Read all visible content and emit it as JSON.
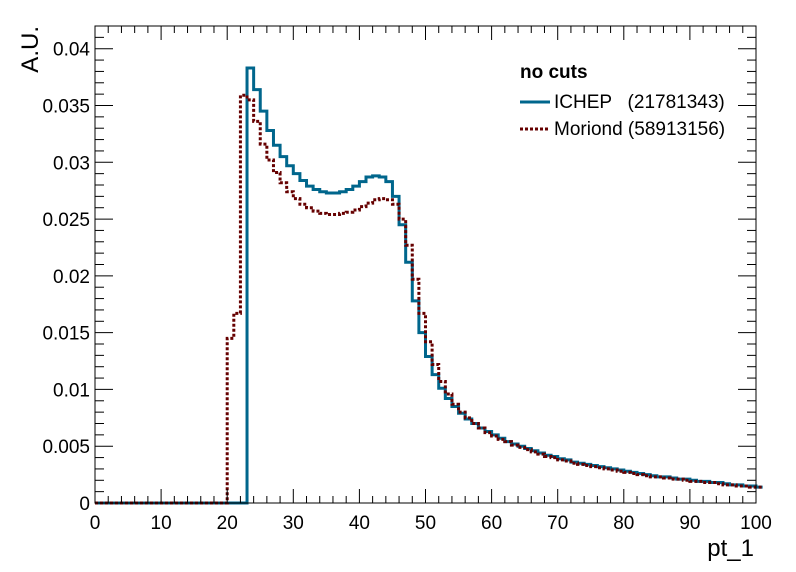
{
  "chart_data": {
    "type": "line",
    "step": true,
    "xlabel": "pt_1",
    "ylabel": "A.U.",
    "xlim": [
      0,
      100
    ],
    "ylim": [
      0,
      0.042
    ],
    "x_ticks": [
      "0",
      "10",
      "20",
      "30",
      "40",
      "50",
      "60",
      "70",
      "80",
      "90",
      "100"
    ],
    "y_ticks": [
      "0",
      "0.005",
      "0.01",
      "0.015",
      "0.02",
      "0.025",
      "0.03",
      "0.035",
      "0.04"
    ],
    "grid": false,
    "legend": {
      "placement": "top-right",
      "title": "no cuts"
    },
    "bin_width": 1,
    "bin_edges_start": 0,
    "series": [
      {
        "name": "ICHEP   (21781343)",
        "color": "#00668c",
        "style": "solid",
        "values": [
          0,
          0,
          0,
          0,
          0,
          0,
          0,
          0,
          0,
          0,
          0,
          0,
          0,
          0,
          0,
          0,
          0,
          0,
          0,
          0,
          0,
          0,
          0,
          0.0383,
          0.0364,
          0.0345,
          0.0328,
          0.0315,
          0.0305,
          0.0297,
          0.029,
          0.0284,
          0.0279,
          0.0276,
          0.0274,
          0.0273,
          0.0273,
          0.0274,
          0.0276,
          0.0279,
          0.0283,
          0.0287,
          0.0288,
          0.0287,
          0.0283,
          0.027,
          0.0245,
          0.0212,
          0.0178,
          0.015,
          0.0129,
          0.0113,
          0.0101,
          0.0092,
          0.0085,
          0.0079,
          0.0074,
          0.007,
          0.0066,
          0.0063,
          0.006,
          0.0057,
          0.0054,
          0.0052,
          0.005,
          0.0048,
          0.0046,
          0.0044,
          0.0042,
          0.0041,
          0.0039,
          0.0038,
          0.0036,
          0.0035,
          0.0034,
          0.0033,
          0.0032,
          0.0031,
          0.003,
          0.0029,
          0.0028,
          0.0027,
          0.0026,
          0.0025,
          0.0024,
          0.0023,
          0.0023,
          0.0022,
          0.0021,
          0.0021,
          0.002,
          0.0019,
          0.0019,
          0.0018,
          0.0018,
          0.0017,
          0.0016,
          0.0016,
          0.0015,
          0.0015,
          0.0014
        ]
      },
      {
        "name": "Moriond (58913156)",
        "color": "#660000",
        "style": "dotted",
        "values": [
          0,
          0,
          0,
          0,
          0,
          0,
          0,
          0,
          0,
          0,
          0,
          0,
          0,
          0,
          0,
          0,
          0,
          0,
          0,
          0,
          0.0145,
          0.0167,
          0.0359,
          0.0355,
          0.0336,
          0.0316,
          0.0302,
          0.0291,
          0.0282,
          0.0274,
          0.0268,
          0.0263,
          0.026,
          0.0257,
          0.0255,
          0.0254,
          0.0254,
          0.0255,
          0.0256,
          0.0258,
          0.0261,
          0.0264,
          0.0267,
          0.0268,
          0.0267,
          0.0263,
          0.025,
          0.0227,
          0.0197,
          0.0167,
          0.0142,
          0.0122,
          0.0107,
          0.0096,
          0.0087,
          0.008,
          0.0075,
          0.007,
          0.0066,
          0.0062,
          0.0059,
          0.0056,
          0.0054,
          0.0051,
          0.0049,
          0.0047,
          0.0045,
          0.0043,
          0.0041,
          0.004,
          0.0038,
          0.0037,
          0.0035,
          0.0034,
          0.0033,
          0.0032,
          0.0031,
          0.003,
          0.0029,
          0.0028,
          0.0027,
          0.0026,
          0.0025,
          0.0024,
          0.0023,
          0.0023,
          0.0022,
          0.0021,
          0.0021,
          0.002,
          0.0019,
          0.0019,
          0.0018,
          0.0018,
          0.0017,
          0.0016,
          0.0016,
          0.0015,
          0.0015,
          0.0014,
          0.0014
        ]
      }
    ]
  }
}
